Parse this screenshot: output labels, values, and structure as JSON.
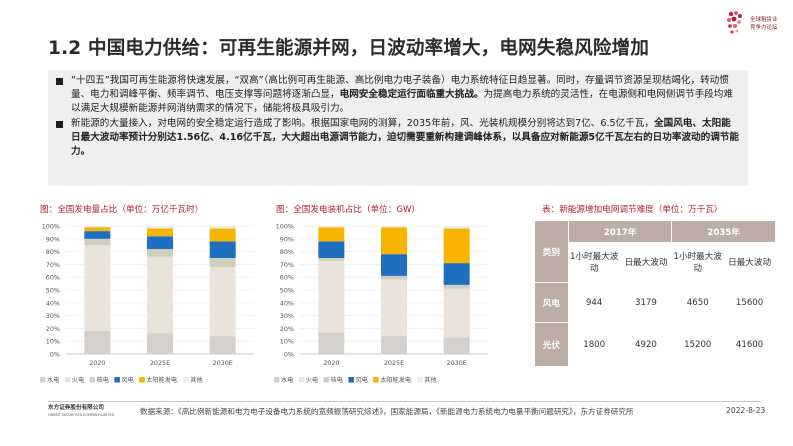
{
  "header": {
    "logo_lines": [
      "全球租赁业",
      "竞争力论坛"
    ],
    "title": "1.2 中国电力供给：可再生能源并网，日波动率增大，电网失稳风险增加"
  },
  "summary": {
    "bullet1_a": "“十四五”我国可再生能源将快速发展，“双高”（高比例可再生能源、高比例电力电子装备）电力系统特征日趋显著。同时，存量调节资源呈现枯竭化，转动惯量、电力和调峰平衡、频率调节、电压支撑等问题将逐渐凸显，",
    "bullet1_b": "电网安全稳定运行面临重大挑战。",
    "bullet1_c": "为提高电力系统的灵活性，在电源侧和电网侧调节手段均难以满足大规模新能源并网消纳需求的情况下，储能将极具吸引力。",
    "bullet2_a": "新能源的大量接入，对电网的安全稳定运行造成了影响。根据国家电网的测算，2035年前，风、光装机规模分别将达到7亿、6.5亿千瓦，",
    "bullet2_b": "全国风电、太阳能日最大波动率预计分别达1.56亿、4.16亿千瓦，大大超出电源调节能力，迫切需要重新构建调峰体系，以具备应对新能源5亿千瓦左右的日功率波动的调节能力。"
  },
  "chart1_title": "图：全国发电量占比（单位：万亿千瓦时）",
  "chart2_title": "图：全国发电装机占比（单位：GW）",
  "chart_data": [
    {
      "type": "bar",
      "stacked": true,
      "title": "图：全国发电量占比（单位：万亿千瓦时）",
      "categories": [
        "2020",
        "2025E",
        "2030E"
      ],
      "y_ticks": [
        "0%",
        "10%",
        "20%",
        "30%",
        "40%",
        "50%",
        "60%",
        "70%",
        "80%",
        "90%",
        "100%"
      ],
      "ylim": [
        0,
        100
      ],
      "legend_position": "bottom",
      "series": [
        {
          "name": "水电",
          "color": "#d3d0ce",
          "values": [
            18,
            16,
            14
          ]
        },
        {
          "name": "火电",
          "color": "#e9e3dc",
          "values": [
            67,
            60,
            54
          ]
        },
        {
          "name": "核电",
          "color": "#cfcfbf",
          "values": [
            5,
            6,
            7
          ]
        },
        {
          "name": "风电",
          "color": "#1f6fc1",
          "values": [
            6,
            10,
            13
          ]
        },
        {
          "name": "太阳能发电",
          "color": "#f7b500",
          "values": [
            3,
            6,
            10
          ]
        },
        {
          "name": "其他",
          "color": "#ebebeb",
          "values": [
            1,
            2,
            2
          ]
        }
      ]
    },
    {
      "type": "bar",
      "stacked": true,
      "title": "图：全国发电装机占比（单位：GW）",
      "categories": [
        "2020",
        "2025E",
        "2030E"
      ],
      "y_ticks": [
        "0%",
        "10%",
        "20%",
        "30%",
        "40%",
        "50%",
        "60%",
        "70%",
        "80%",
        "90%",
        "100%"
      ],
      "ylim": [
        0,
        100
      ],
      "legend_position": "bottom",
      "series": [
        {
          "name": "水电",
          "color": "#d3d0ce",
          "values": [
            17,
            14,
            13
          ]
        },
        {
          "name": "火电",
          "color": "#e9e3dc",
          "values": [
            56,
            44,
            38
          ]
        },
        {
          "name": "核电",
          "color": "#cfcfbf",
          "values": [
            2,
            3,
            3
          ]
        },
        {
          "name": "风电",
          "color": "#1f6fc1",
          "values": [
            13,
            17,
            17
          ]
        },
        {
          "name": "太阳能发电",
          "color": "#f7b500",
          "values": [
            11,
            21,
            27
          ]
        },
        {
          "name": "其他",
          "color": "#ebebeb",
          "values": [
            1,
            1,
            2
          ]
        }
      ]
    }
  ],
  "table": {
    "title": "表：新能源增加电网调节难度（单位：万千瓦）",
    "type_label": "类别",
    "years": [
      "2017年",
      "2035年"
    ],
    "sub_headers": [
      "1小时最大波动",
      "日最大波动",
      "1小时最大波动",
      "日最大波动"
    ],
    "rows": [
      {
        "label": "风电",
        "values": [
          "944",
          "3179",
          "4650",
          "15600"
        ]
      },
      {
        "label": "光伏",
        "values": [
          "1800",
          "4920",
          "15200",
          "41600"
        ]
      }
    ]
  },
  "footer": {
    "logo_cn": "东方证券股份有限公司",
    "logo_en": "ORIENT SECURITIES COMPANY LIMITED",
    "source": "数据来源：《高比例新能源和电力电子设备电力系统的宽频振荡研究综述》，国家能源局，《新能源电力系统电力电量平衡问题研究》，东方证券研究所",
    "date": "2022-8-23"
  }
}
